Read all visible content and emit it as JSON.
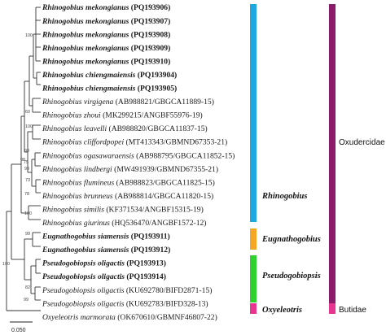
{
  "taxa": [
    {
      "sp": "Rhinogobius mekongianus",
      "acc": "(PQ193906)",
      "bold": true
    },
    {
      "sp": "Rhinogobius mekongianus",
      "acc": "(PQ193907)",
      "bold": true
    },
    {
      "sp": "Rhinogobius mekongianus",
      "acc": "(PQ193908)",
      "bold": true
    },
    {
      "sp": "Rhinogobius mekongianus",
      "acc": "(PQ193909)",
      "bold": true
    },
    {
      "sp": "Rhinogobius mekongianus",
      "acc": "(PQ193910)",
      "bold": true
    },
    {
      "sp": "Rhinogobius chiengmaiensis",
      "acc": "(PQ193904)",
      "bold": true
    },
    {
      "sp": "Rhinogobius chiengmaiensis",
      "acc": "(PQ193905)",
      "bold": true
    },
    {
      "sp": "Rhinogobius virgigena",
      "acc": "(AB988821/GBGCA11889-15)",
      "bold": false
    },
    {
      "sp": "Rhinogobius zhoui",
      "acc": "(MK299215/ANGBF55976-19)",
      "bold": false
    },
    {
      "sp": "Rhinogobius leavelli",
      "acc": "(AB988820/GBGCA11837-15)",
      "bold": false
    },
    {
      "sp": "Rhinogobius cliffordpopei",
      "acc": "(MT413343/GBMND67353-21)",
      "bold": false
    },
    {
      "sp": "Rhinogobius ogasawaraensis",
      "acc": "(AB988795/GBGCA11852-15)",
      "bold": false
    },
    {
      "sp": "Rhinogobius lindbergi",
      "acc": "(MW491939/GBMND67355-21)",
      "bold": false
    },
    {
      "sp": "Rhinogobius flumineus",
      "acc": "(AB988823/GBGCA11825-15)",
      "bold": false
    },
    {
      "sp": "Rhinogobius brunneus",
      "acc": "(AB988814/GBGCA11820-15)",
      "bold": false
    },
    {
      "sp": "Rhinogobius similis",
      "acc": "(KF371534/ANGBF15315-19)",
      "bold": false
    },
    {
      "sp": "Rhinogobius giurinus",
      "acc": "(HQ536470/ANGBF1572-12)",
      "bold": false
    },
    {
      "sp": "Eugnathogobius siamensis",
      "acc": "(PQ193911)",
      "bold": true
    },
    {
      "sp": "Eugnathogobius siamensis",
      "acc": "(PQ193912)",
      "bold": true
    },
    {
      "sp": "Pseudogobiopsis oligactis",
      "acc": "(PQ193913)",
      "bold": true
    },
    {
      "sp": "Pseudogobiopsis oligactis",
      "acc": "(PQ193914)",
      "bold": true
    },
    {
      "sp": "Pseudogobiopsis oligactis",
      "acc": "(KU692780/BIFD2871-15)",
      "bold": false
    },
    {
      "sp": "Pseudogobiopsis oligactis",
      "acc": "(KU692783/BIFD328-13)",
      "bold": false
    },
    {
      "sp": "Oxyeleotris marmorata",
      "acc": "(OK670610/GBMNF46807-22)",
      "bold": false
    }
  ],
  "support_values": [
    "100",
    "60",
    "100",
    "99",
    "98",
    "75",
    "99",
    "73",
    "78",
    "100",
    "99",
    "100",
    "82",
    "99"
  ],
  "clades": [
    {
      "label": "Rhinogobius",
      "color": "#1ea7e1"
    },
    {
      "label": "Eugnathogobius",
      "color": "#f5a623"
    },
    {
      "label": "Pseudogobiopsis",
      "color": "#2fd12f"
    },
    {
      "label": "Oxyeleotris",
      "color": "#e8358f"
    }
  ],
  "families": [
    {
      "label": "Oxudercidae",
      "color": "#8b1a6b"
    },
    {
      "label": "Butidae",
      "color": "#e8358f"
    }
  ],
  "scale": {
    "label": "0.050"
  }
}
